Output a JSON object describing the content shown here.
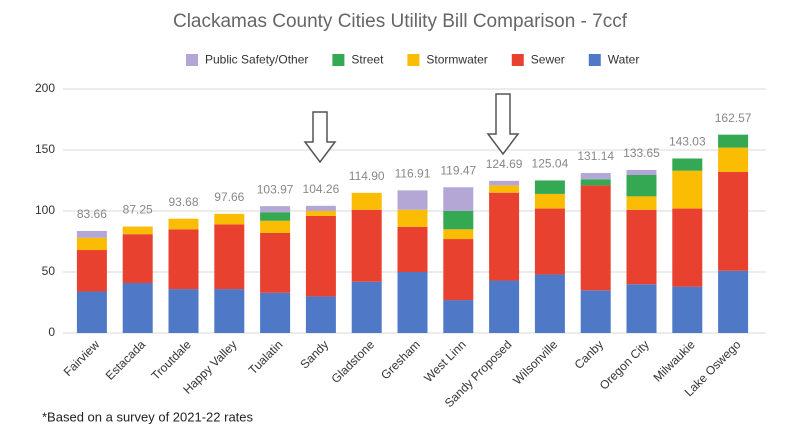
{
  "chart_data": {
    "type": "stacked_bar",
    "title": "Clackamas County Cities Utility Bill Comparison - 7ccf",
    "categories": [
      "Fairview",
      "Estacada",
      "Troutdale",
      "Happy Valley",
      "Tualatin",
      "Sandy",
      "Gladstone",
      "Gresham",
      "West Linn",
      "Sandy Proposed",
      "Wilsonville",
      "Canby",
      "Oregon City",
      "Milwaukie",
      "Lake Oswego"
    ],
    "series": [
      {
        "name": "Water",
        "color": "#4f79c6",
        "values": [
          34,
          41,
          36,
          36,
          33,
          30,
          42,
          50,
          27,
          43,
          48,
          35,
          40,
          38,
          51
        ]
      },
      {
        "name": "Sewer",
        "color": "#e8412f",
        "values": [
          34,
          40,
          49,
          53,
          49,
          66,
          59,
          37,
          50,
          72,
          54,
          86,
          61,
          64,
          81
        ]
      },
      {
        "name": "Stormwater",
        "color": "#fbbc04",
        "values": [
          10,
          6.25,
          8.68,
          8.66,
          10,
          4,
          13.9,
          14,
          8,
          6,
          12,
          0,
          11,
          31,
          20
        ]
      },
      {
        "name": "Street",
        "color": "#34a853",
        "values": [
          0,
          0,
          0,
          0,
          7,
          0,
          0,
          0,
          15,
          0,
          11.04,
          5,
          17.5,
          10.03,
          10.57
        ]
      },
      {
        "name": "Public Safety/Other",
        "color": "#b4a7d6",
        "values": [
          5.66,
          0,
          0,
          0,
          4.97,
          4.26,
          0,
          15.91,
          19.47,
          3.69,
          0,
          5.14,
          4.15,
          0,
          0
        ]
      }
    ],
    "totals": [
      83.66,
      87.25,
      93.68,
      97.66,
      103.97,
      104.26,
      114.9,
      116.91,
      119.47,
      124.69,
      125.04,
      131.14,
      133.65,
      143.03,
      162.57
    ],
    "totals_labels": [
      "83.66",
      "87.25",
      "93.68",
      "97.66",
      "103.97",
      "104.26",
      "114.90",
      "116.91",
      "119.47",
      "124.69",
      "125.04",
      "131.14",
      "133.65",
      "143.03",
      "162.57"
    ],
    "ylim": [
      0,
      200
    ],
    "yticks": [
      0,
      50,
      100,
      150,
      200
    ],
    "grid": true,
    "note": "*Based on a survey of 2021-22 rates"
  }
}
